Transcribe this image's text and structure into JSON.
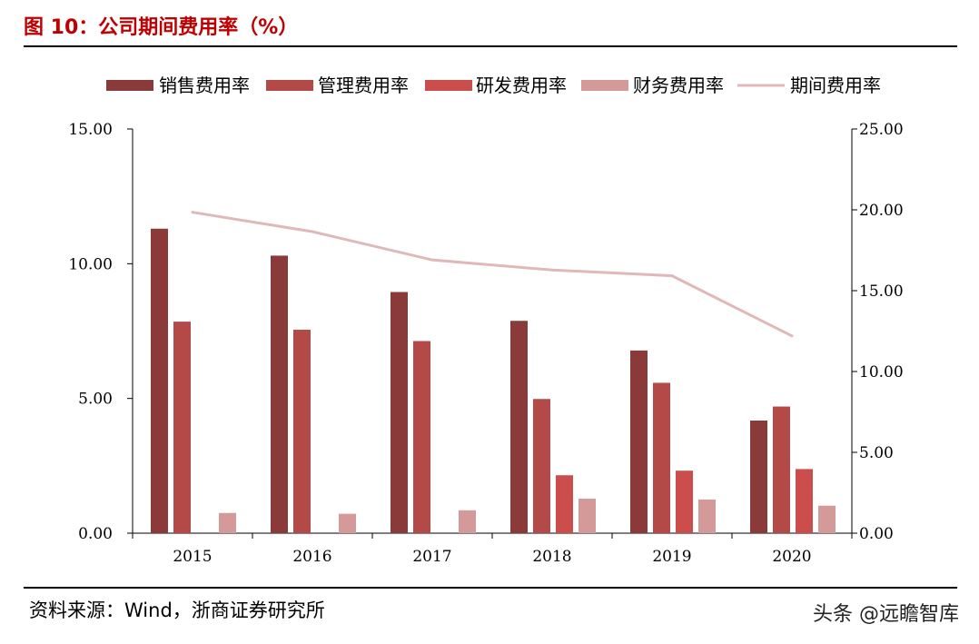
{
  "header": {
    "title": "图 10：公司期间费用率（%）"
  },
  "footer": {
    "source": "资料来源：Wind，浙商证券研究所",
    "watermark": "头条 @远瞻智库"
  },
  "chart_data": {
    "type": "bar",
    "title": "",
    "categories": [
      "2015",
      "2016",
      "2017",
      "2018",
      "2019",
      "2020"
    ],
    "series": [
      {
        "name": "销售费用率",
        "type": "bar",
        "axis": "left",
        "color": "#8b3a3a",
        "values": [
          11.3,
          10.3,
          8.95,
          7.88,
          6.78,
          4.18
        ]
      },
      {
        "name": "管理费用率",
        "type": "bar",
        "axis": "left",
        "color": "#b34a48",
        "values": [
          7.85,
          7.55,
          7.13,
          4.98,
          5.58,
          4.7
        ]
      },
      {
        "name": "研发费用率",
        "type": "bar",
        "axis": "left",
        "color": "#cc4e4c",
        "values": [
          null,
          null,
          null,
          2.15,
          2.32,
          2.38
        ]
      },
      {
        "name": "财务费用率",
        "type": "bar",
        "axis": "left",
        "color": "#d49a9a",
        "values": [
          0.75,
          0.72,
          0.85,
          1.28,
          1.25,
          1.02
        ]
      },
      {
        "name": "期间费用率",
        "type": "line",
        "axis": "right",
        "color": "#e0b8b8",
        "values": [
          19.85,
          18.65,
          16.9,
          16.28,
          15.92,
          12.2
        ]
      }
    ],
    "y_left": {
      "min": 0,
      "max": 15,
      "ticks": [
        "0.00",
        "5.00",
        "10.00",
        "15.00"
      ]
    },
    "y_right": {
      "min": 0,
      "max": 25,
      "ticks": [
        "0.00",
        "5.00",
        "10.00",
        "15.00",
        "20.00",
        "25.00"
      ]
    },
    "legend_position": "top",
    "grid": false
  }
}
